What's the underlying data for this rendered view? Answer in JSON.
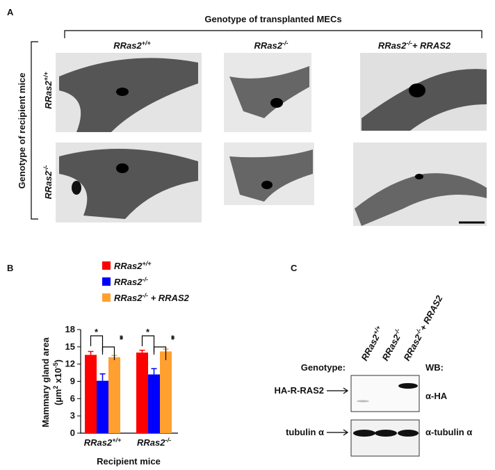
{
  "panel_labels": [
    "A",
    "B",
    "C"
  ],
  "panel_a": {
    "title": "Genotype of transplanted MECs",
    "columns": [
      {
        "base": "RRas2",
        "sup": "+/+"
      },
      {
        "base": "RRas2",
        "sup": "-/-"
      },
      {
        "base": "RRas2",
        "sup": "-/-",
        "rest": "+ RRAS2"
      }
    ],
    "row_title": "Genotype of recipient mice",
    "rows": [
      {
        "base": "RRas2",
        "sup": "+/+"
      },
      {
        "base": "RRas2",
        "sup": "-/-"
      }
    ]
  },
  "chart_data": {
    "type": "bar",
    "ylabel": [
      "Mammary gland area",
      {
        "base": "(µm",
        "sup": "2",
        "mid": " x10",
        "sup2": "-5",
        "rest": ")"
      }
    ],
    "xlabel": "Recipient mice",
    "categories": [
      {
        "base": "RRas2",
        "sup": "+/+"
      },
      {
        "base": "RRas2",
        "sup": "-/-"
      }
    ],
    "series": [
      {
        "name": {
          "base": "RRas2",
          "sup": "+/+"
        },
        "color": "#ff0000",
        "values": [
          13.6,
          14.0
        ],
        "errors": [
          0.6,
          0.4
        ]
      },
      {
        "name": {
          "base": "RRas2",
          "sup": "-/-"
        },
        "color": "#0000ff",
        "values": [
          9.1,
          10.2
        ],
        "errors": [
          1.2,
          1.0
        ]
      },
      {
        "name": {
          "base": "RRas2",
          "sup": "-/-",
          "rest": " + RRAS2"
        },
        "color": "#ffa030",
        "values": [
          13.2,
          14.2
        ],
        "errors": [
          0.3,
          0.4
        ]
      }
    ],
    "ylim": [
      0,
      18
    ],
    "yticks": [
      0,
      3,
      6,
      9,
      12,
      15,
      18
    ],
    "annotations": [
      "*",
      "**",
      "*",
      "**"
    ]
  },
  "panel_c": {
    "lanes": [
      {
        "base": "RRas2",
        "sup": "+/+"
      },
      {
        "base": "RRas2",
        "sup": "-/-"
      },
      {
        "base": "RRas2",
        "sup": "-/-",
        "rest": "+ RRAS2"
      }
    ],
    "genotype_label": "Genotype:",
    "wb_label": "WB:",
    "proteins": [
      "HA-R-RAS2",
      "tubulin α"
    ],
    "antibodies": [
      "α-HA",
      "α-tubulin α"
    ]
  }
}
